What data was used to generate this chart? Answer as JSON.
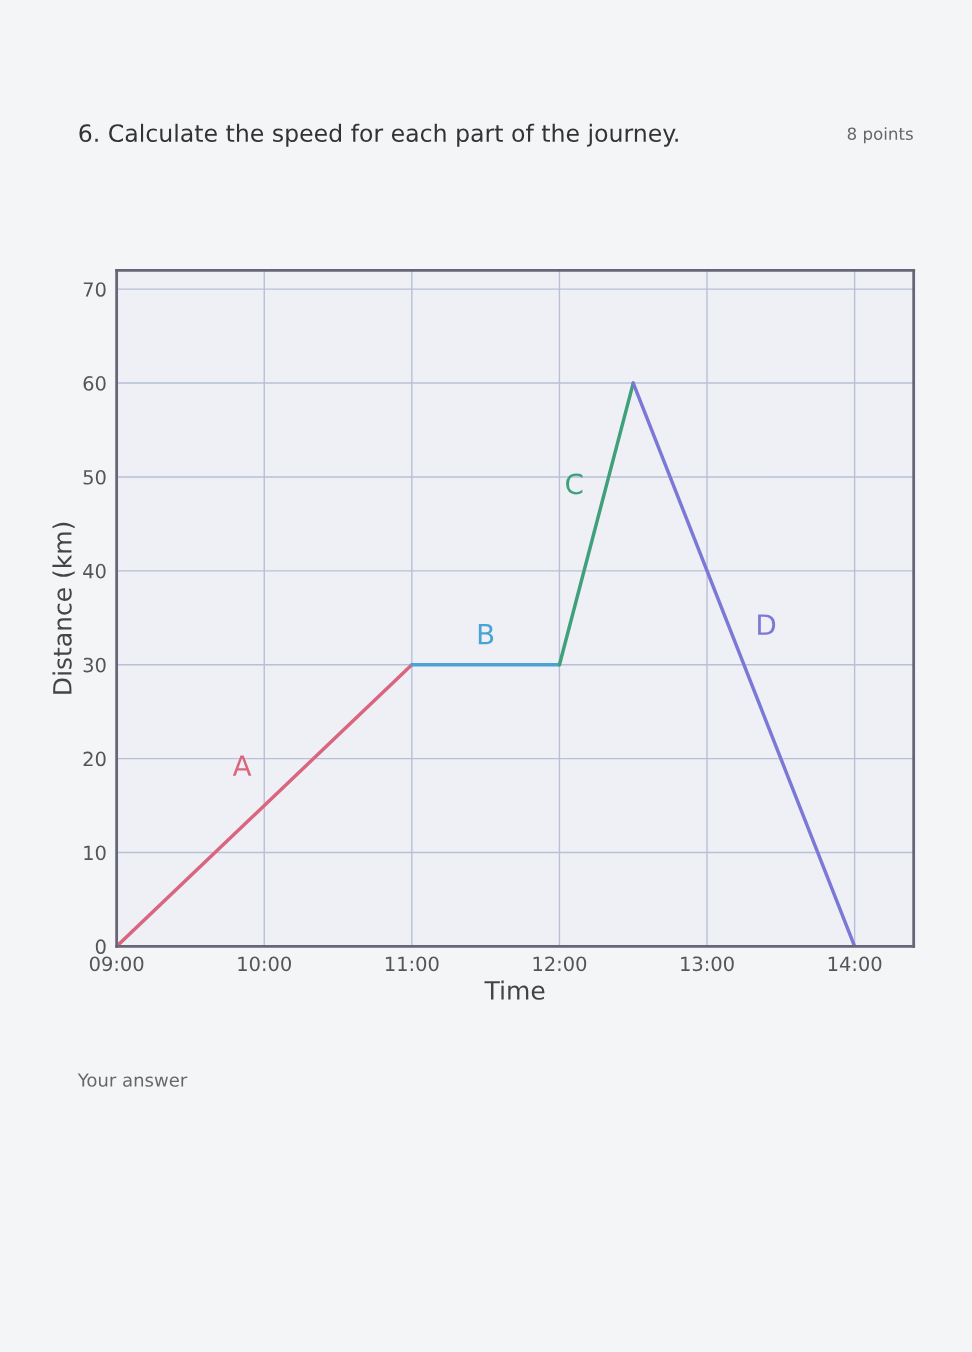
{
  "chart_data": {
    "type": "line",
    "title": "6. Calculate the speed for each part of the journey.",
    "xlabel": "Time",
    "ylabel": "Distance (km)",
    "annotations": [
      "8 points",
      "Your answer"
    ],
    "series": [
      {
        "name": "A",
        "color": "#d9667e",
        "x": [
          9,
          11
        ],
        "values": [
          0,
          30
        ]
      },
      {
        "name": "B",
        "color": "#4aa3d6",
        "x": [
          11,
          12
        ],
        "values": [
          30,
          30
        ]
      },
      {
        "name": "C",
        "color": "#3fa07a",
        "x": [
          12,
          12.5
        ],
        "values": [
          30,
          60
        ]
      },
      {
        "name": "D",
        "color": "#7c79d6",
        "x": [
          12.5,
          14
        ],
        "values": [
          60,
          0
        ]
      }
    ],
    "xlim": [
      9,
      14.4
    ],
    "ylim": [
      0,
      72
    ],
    "xticks": [
      {
        "value": 9,
        "label": "09:00"
      },
      {
        "value": 10,
        "label": "10:00"
      },
      {
        "value": 11,
        "label": "11:00"
      },
      {
        "value": 12,
        "label": "12:00"
      },
      {
        "value": 13,
        "label": "13:00"
      },
      {
        "value": 14,
        "label": "14:00"
      }
    ],
    "yticks": [
      0,
      10,
      20,
      30,
      40,
      50,
      60,
      70
    ],
    "grid": true,
    "legend": false,
    "marker": "none",
    "line_style": "solid"
  }
}
